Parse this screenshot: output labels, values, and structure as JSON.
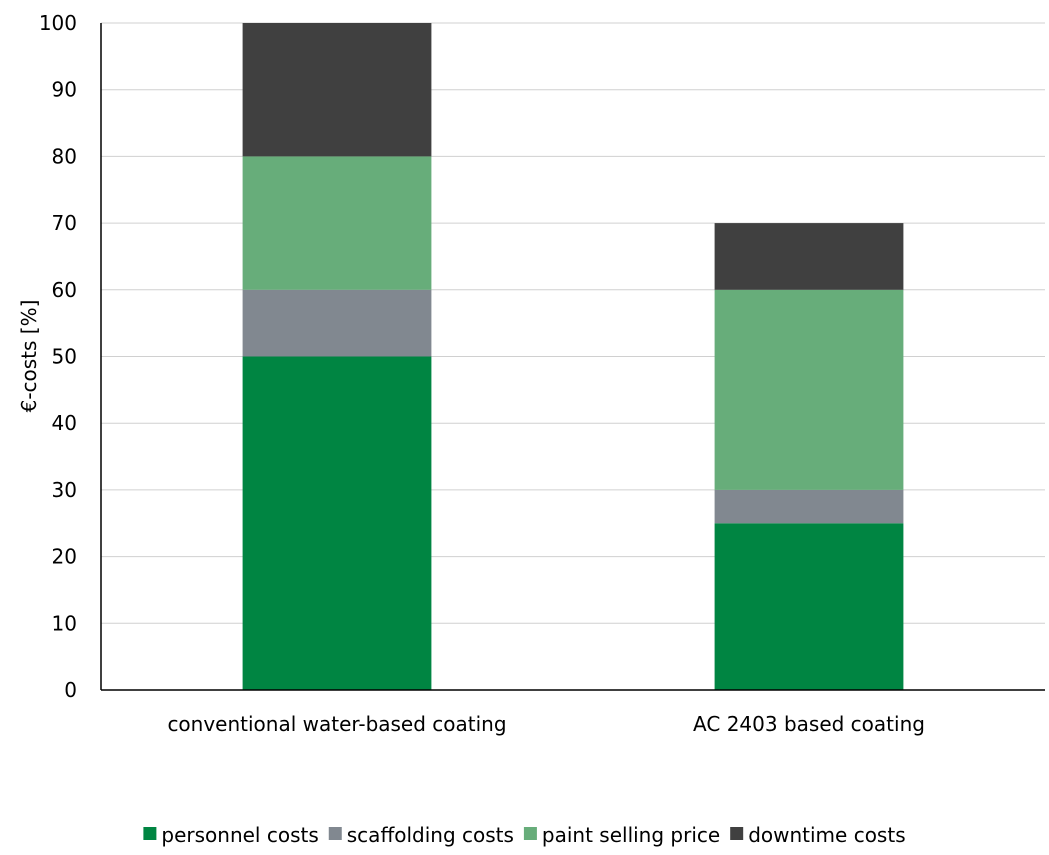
{
  "chart_data": {
    "type": "bar",
    "stacked": true,
    "categories": [
      "conventional water-based coating",
      "AC 2403 based coating"
    ],
    "series": [
      {
        "name": "personnel costs",
        "values": [
          50,
          25
        ],
        "color": "#008542"
      },
      {
        "name": "scaffolding costs",
        "values": [
          10,
          5
        ],
        "color": "#818890"
      },
      {
        "name": "paint selling price",
        "values": [
          20,
          30
        ],
        "color": "#67ad7a"
      },
      {
        "name": "downtime costs",
        "values": [
          20,
          10
        ],
        "color": "#404040"
      }
    ],
    "xlabel": "",
    "ylabel": "€-costs [%]",
    "ylim": [
      0,
      100
    ],
    "yticks": [
      0,
      10,
      20,
      30,
      40,
      50,
      60,
      70,
      80,
      90,
      100
    ],
    "grid": true,
    "legend_position": "bottom"
  }
}
